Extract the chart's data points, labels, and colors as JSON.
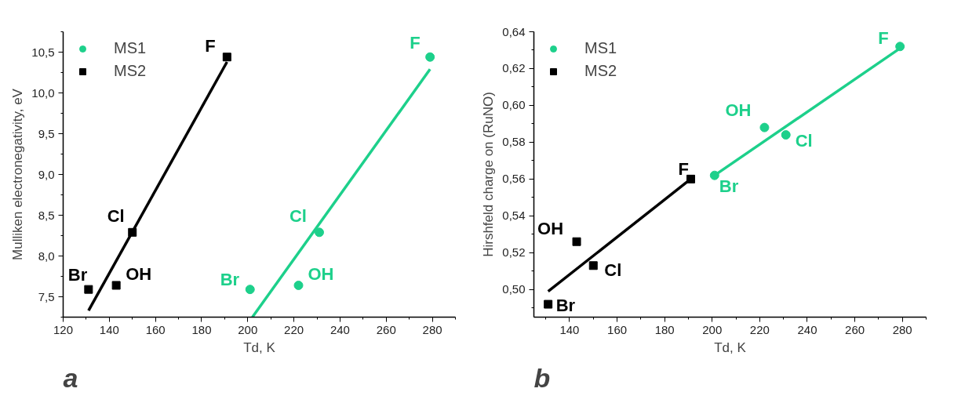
{
  "chart_data": [
    {
      "type": "scatter",
      "xlabel": "Td, K",
      "ylabel": "Mulliken electronegativity, eV",
      "xlim": [
        120,
        290
      ],
      "ylim": [
        7.25,
        10.75
      ],
      "xticks": [
        120,
        140,
        160,
        180,
        200,
        220,
        240,
        260,
        280
      ],
      "yticks": [
        {
          "value": 7.5,
          "label": "7,5"
        },
        {
          "value": 8.0,
          "label": "8,0"
        },
        {
          "value": 8.5,
          "label": "8,5"
        },
        {
          "value": 9.0,
          "label": "9,0"
        },
        {
          "value": 9.5,
          "label": "9,5"
        },
        {
          "value": 10.0,
          "label": "10,0"
        },
        {
          "value": 10.5,
          "label": "10,5"
        }
      ],
      "grid": false,
      "legend": "top left",
      "series": [
        {
          "name": "MS1",
          "color": "#1dd08b",
          "marker": "circle",
          "x": [
            201,
            222,
            231,
            279
          ],
          "values": [
            7.59,
            7.64,
            8.29,
            10.44
          ]
        },
        {
          "name": "MS2",
          "color": "#000000",
          "marker": "square",
          "x": [
            131,
            143,
            150,
            191
          ],
          "values": [
            7.59,
            7.64,
            8.29,
            10.44
          ]
        },
        {
          "type": "line",
          "color": "#1dd08b",
          "x": [
            202,
            279
          ],
          "values": [
            7.25,
            10.29
          ]
        },
        {
          "type": "line",
          "color": "#000000",
          "x": [
            131,
            191
          ],
          "values": [
            7.33,
            10.38
          ]
        }
      ],
      "annotations": [
        "a",
        {
          "text": "Br",
          "x": 201,
          "y": 7.59
        },
        {
          "text": "OH",
          "x": 222,
          "y": 7.64
        },
        {
          "text": "Cl",
          "x": 231,
          "y": 8.29
        },
        {
          "text": "F",
          "x": 279,
          "y": 10.44
        },
        {
          "text": "Br",
          "x": 131,
          "y": 7.59
        },
        {
          "text": "OH",
          "x": 143,
          "y": 7.64
        },
        {
          "text": "Cl",
          "x": 150,
          "y": 8.29
        },
        {
          "text": "F",
          "x": 191,
          "y": 10.44
        }
      ]
    },
    {
      "type": "scatter",
      "xlabel": "Td, K",
      "ylabel": "Hirshfeld charge on (RuNO)",
      "xlim": [
        125,
        290
      ],
      "ylim": [
        0.485,
        0.64
      ],
      "xticks": [
        140,
        160,
        180,
        200,
        220,
        240,
        260,
        280
      ],
      "yticks": [
        {
          "value": 0.5,
          "label": "0,50"
        },
        {
          "value": 0.52,
          "label": "0,52"
        },
        {
          "value": 0.54,
          "label": "0,54"
        },
        {
          "value": 0.56,
          "label": "0,56"
        },
        {
          "value": 0.58,
          "label": "0,58"
        },
        {
          "value": 0.6,
          "label": "0,60"
        },
        {
          "value": 0.62,
          "label": "0,62"
        },
        {
          "value": 0.64,
          "label": "0,64"
        }
      ],
      "grid": false,
      "legend": "top left",
      "series": [
        {
          "name": "MS1",
          "color": "#1dd08b",
          "marker": "circle",
          "x": [
            201,
            222,
            231,
            279
          ],
          "values": [
            0.562,
            0.588,
            0.584,
            0.632
          ]
        },
        {
          "name": "MS2",
          "color": "#000000",
          "marker": "square",
          "x": [
            131,
            143,
            150,
            191
          ],
          "values": [
            0.492,
            0.526,
            0.513,
            0.56
          ]
        },
        {
          "type": "line",
          "color": "#1dd08b",
          "x": [
            201,
            279
          ],
          "values": [
            0.562,
            0.631
          ]
        },
        {
          "type": "line",
          "color": "#000000",
          "x": [
            131,
            190
          ],
          "values": [
            0.499,
            0.559
          ]
        }
      ],
      "annotations": [
        "b",
        {
          "text": "Br",
          "x": 201,
          "y": 0.562
        },
        {
          "text": "OH",
          "x": 222,
          "y": 0.588
        },
        {
          "text": "Cl",
          "x": 231,
          "y": 0.584
        },
        {
          "text": "F",
          "x": 279,
          "y": 0.632
        },
        {
          "text": "Br",
          "x": 131,
          "y": 0.492
        },
        {
          "text": "OH",
          "x": 143,
          "y": 0.526
        },
        {
          "text": "Cl",
          "x": 150,
          "y": 0.513
        },
        {
          "text": "F",
          "x": 191,
          "y": 0.56
        }
      ]
    }
  ]
}
